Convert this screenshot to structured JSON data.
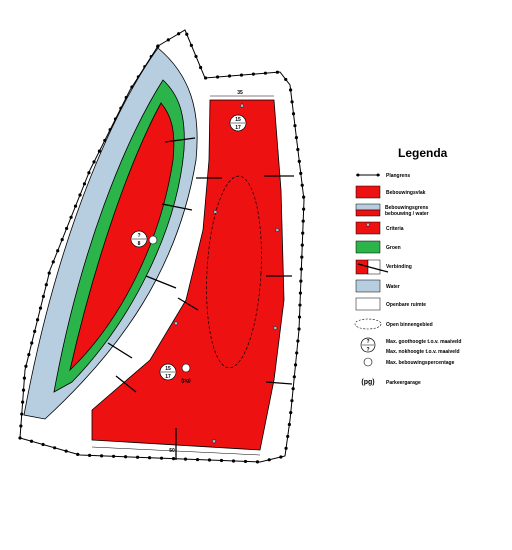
{
  "map": {
    "dimensions": {
      "top": "35",
      "bottom": "50"
    },
    "symbols": [
      {
        "top": "15",
        "bottom": "17"
      },
      {
        "top": "?",
        "bottom": "8"
      },
      {
        "top": "15",
        "bottom": "17",
        "tag": "(pg)"
      }
    ]
  },
  "legend": {
    "title": "Legenda",
    "items": [
      "Plangrens",
      "Bebouwingsvlak",
      "Bebouwingsgrens bebouwing / water",
      "Criteria",
      "Groen",
      "Verbinding",
      "Water",
      "Openbare ruimte",
      "Open binnengebied",
      "Max. goothoogte t.o.v. maaiveld",
      "Max. nokhoogte t.o.v. maaiveld",
      "Max. bebouwingspercentage",
      "Parkeergarage"
    ],
    "symbol": {
      "top": "?",
      "bottom": "?",
      "tag": "(pg)"
    }
  }
}
